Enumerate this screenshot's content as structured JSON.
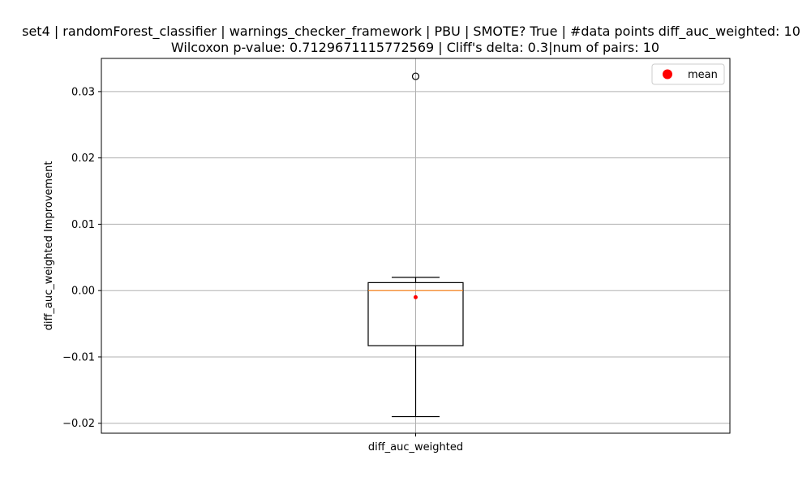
{
  "chart_data": {
    "type": "box",
    "title_line1": "set4 | randomForest_classifier | warnings_checker_framework | PBU | SMOTE? True | #data points diff_auc_weighted: 10",
    "title_line2": "Wilcoxon p-value: 0.7129671115772569 | Cliff's delta: 0.3|num of pairs: 10",
    "ylabel": "diff_auc_weighted Improvement",
    "xlabel": "",
    "category": "diff_auc_weighted",
    "ylim": [
      -0.0215,
      0.035
    ],
    "yticks": [
      -0.02,
      -0.01,
      0.0,
      0.01,
      0.02,
      0.03
    ],
    "ytick_labels": [
      "−0.02",
      "−0.01",
      "0.00",
      "0.01",
      "0.02",
      "0.03"
    ],
    "grid": true,
    "legend": {
      "position": "top-right",
      "entries": [
        {
          "label": "mean",
          "color": "#ff0000"
        }
      ]
    },
    "box": {
      "whisker_low": -0.019,
      "q1": -0.0083,
      "median": 0.0,
      "q3": 0.0012,
      "whisker_high": 0.002,
      "mean": -0.001,
      "outliers": [
        0.0323
      ]
    },
    "colors": {
      "box": "#000000",
      "median": "#ff7f0e",
      "mean": "#ff0000",
      "grid": "#b0b0b0"
    }
  }
}
